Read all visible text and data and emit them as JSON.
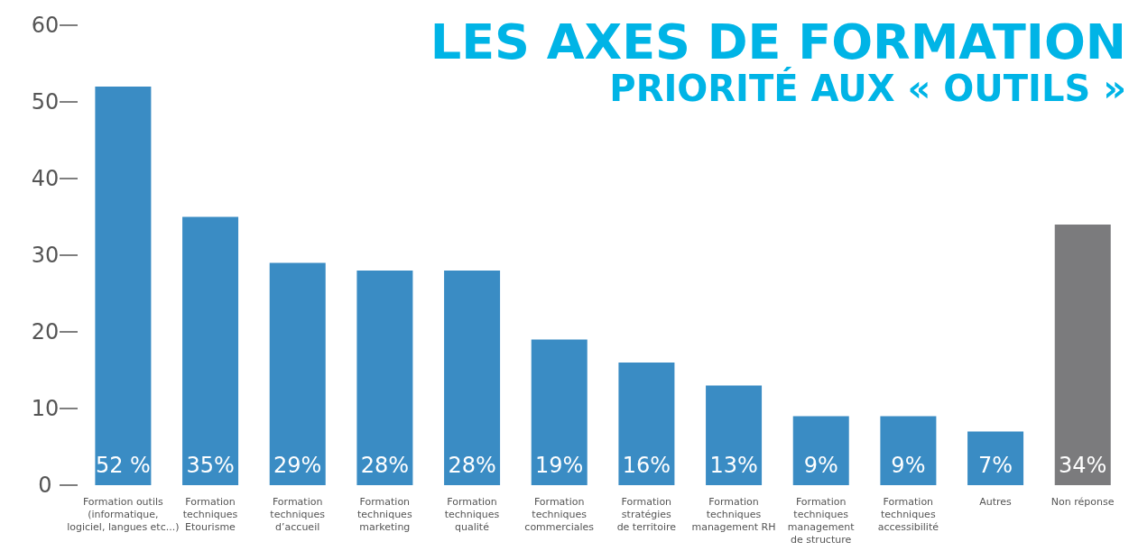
{
  "chart_data": {
    "type": "bar",
    "title": "LES AXES DE FORMATION",
    "subtitle": "PRIORITÉ AUX « OUTILS »",
    "categories": [
      "Formation outils\n(informatique,\nlogiciel, langues etc...)",
      "Formation\ntechniques\nEtourisme",
      "Formation\ntechniques\nd’accueil",
      "Formation\ntechniques\nmarketing",
      "Formation\ntechniques\nqualité",
      "Formation\ntechniques\ncommerciales",
      "Formation\nstratégies\nde territoire",
      "Formation\ntechniques\nmanagement RH",
      "Formation\ntechniques\nmanagement\nde structure",
      "Formation\ntechniques\naccessibilité",
      "Autres",
      "Non réponse"
    ],
    "values": [
      52,
      35,
      29,
      28,
      28,
      19,
      16,
      13,
      9,
      9,
      7,
      34
    ],
    "value_labels": [
      "52 %",
      "35%",
      "29%",
      "28%",
      "28%",
      "19%",
      "16%",
      "13%",
      "9%",
      "9%",
      "7%",
      "34%"
    ],
    "colors": [
      "#3a8cc4",
      "#3a8cc4",
      "#3a8cc4",
      "#3a8cc4",
      "#3a8cc4",
      "#3a8cc4",
      "#3a8cc4",
      "#3a8cc4",
      "#3a8cc4",
      "#3a8cc4",
      "#3a8cc4",
      "#7b7b7d"
    ],
    "ylim": [
      0,
      60
    ],
    "yticks": [
      0,
      10,
      20,
      30,
      40,
      50,
      60
    ]
  }
}
